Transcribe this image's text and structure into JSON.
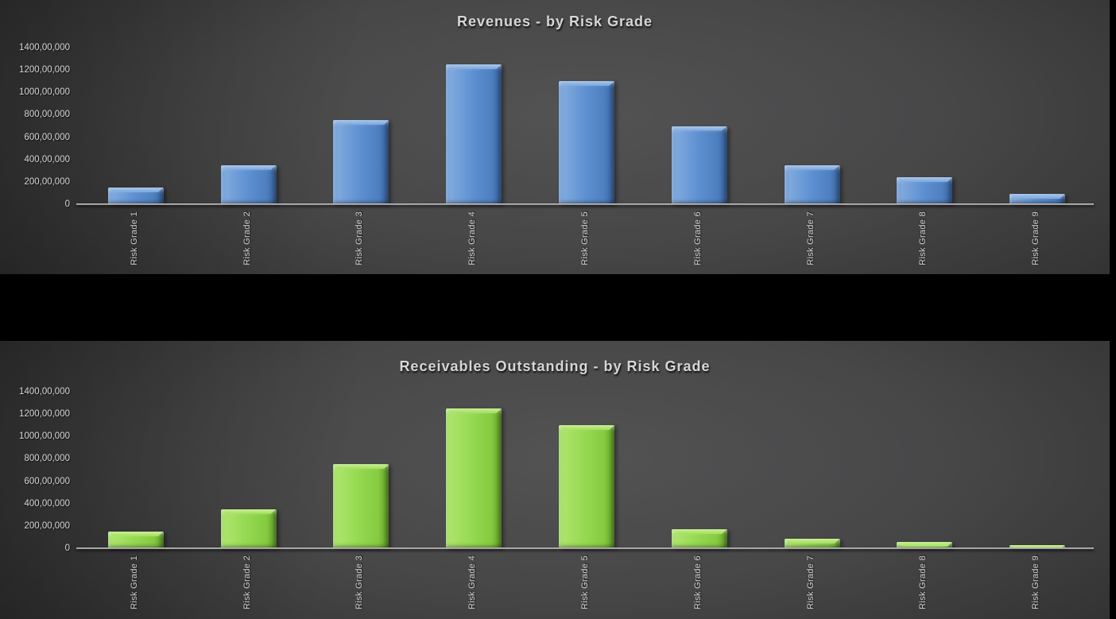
{
  "page": {
    "background": "#000000"
  },
  "chart_data": [
    {
      "type": "bar",
      "title": "Revenues - by Risk Grade",
      "categories": [
        "Risk Grade 1",
        "Risk Grade 2",
        "Risk Grade 3",
        "Risk Grade 4",
        "Risk Grade 5",
        "Risk Grade 6",
        "Risk Grade 7",
        "Risk Grade 8",
        "Risk Grade 9"
      ],
      "values": [
        15000000,
        35000000,
        75000000,
        125000000,
        110000000,
        70000000,
        35000000,
        24000000,
        9000000
      ],
      "xlabel": "",
      "ylabel": "",
      "ylim": [
        0,
        140000000
      ],
      "y_ticks": {
        "values": [
          140000000,
          120000000,
          100000000,
          80000000,
          60000000,
          40000000,
          20000000,
          0
        ],
        "labels": [
          "1400,00,000",
          "1200,00,000",
          "1000,00,000",
          "800,00,000",
          "600,00,000",
          "400,00,000",
          "200,00,000",
          "0"
        ]
      },
      "grid": false,
      "legend": "none",
      "bar_color": "#5c8fd1",
      "bar_style": "3d-bevel",
      "number_format": "indian-lakh"
    },
    {
      "type": "bar",
      "title": "Receivables Outstanding - by Risk Grade",
      "categories": [
        "Risk Grade 1",
        "Risk Grade 2",
        "Risk Grade 3",
        "Risk Grade 4",
        "Risk Grade 5",
        "Risk Grade 6",
        "Risk Grade 7",
        "Risk Grade 8",
        "Risk Grade 9"
      ],
      "values": [
        15000000,
        35000000,
        75000000,
        125000000,
        110000000,
        17000000,
        8500000,
        5500000,
        3000000
      ],
      "xlabel": "",
      "ylabel": "",
      "ylim": [
        0,
        140000000
      ],
      "y_ticks": {
        "values": [
          140000000,
          120000000,
          100000000,
          80000000,
          60000000,
          40000000,
          20000000,
          0
        ],
        "labels": [
          "1400,00,000",
          "1200,00,000",
          "1000,00,000",
          "800,00,000",
          "600,00,000",
          "400,00,000",
          "200,00,000",
          "0"
        ]
      },
      "grid": false,
      "legend": "none",
      "bar_color": "#93d84f",
      "bar_style": "3d-bevel",
      "number_format": "indian-lakh"
    }
  ]
}
